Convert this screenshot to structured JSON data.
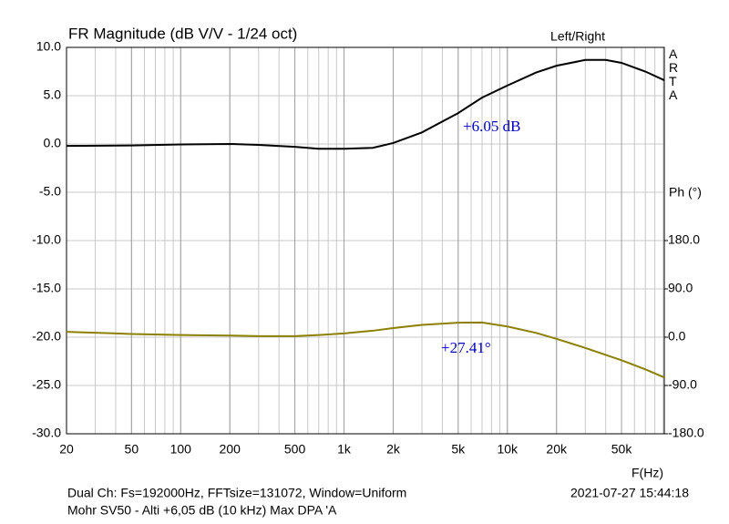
{
  "chart_data": {
    "type": "line",
    "title": "FR Magnitude (dB V/V - 1/24 oct)",
    "channel_label": "Left/Right",
    "brand": "ARTA",
    "y2_label": "Ph (°)",
    "x_label": "F(Hz)",
    "footer_left_1": "Dual Ch: Fs=192000Hz, FFTsize=131072, Window=Uniform",
    "footer_right_1": "2021-07-27  15:44:18",
    "footer_left_2": "Mohr SV50 - Alti +6,05 dB (10 kHz) Max    DPA  'A",
    "annotations": [
      {
        "text": "+6.05 dB",
        "series": 0
      },
      {
        "text": "+27.41°",
        "series": 1
      }
    ],
    "log_x": true,
    "grid": true,
    "x": [
      20,
      50,
      100,
      200,
      300,
      500,
      700,
      1000,
      1500,
      2000,
      3000,
      5000,
      7000,
      10000,
      15000,
      20000,
      30000,
      40000,
      50000,
      70000,
      91400
    ],
    "series": [
      {
        "name": "Magnitude",
        "color": "#000000",
        "values": [
          -0.2,
          -0.15,
          -0.05,
          0,
          -0.1,
          -0.3,
          -0.5,
          -0.5,
          -0.4,
          0.1,
          1.2,
          3.2,
          4.8,
          6.05,
          7.4,
          8.1,
          8.7,
          8.7,
          8.4,
          7.5,
          6.6
        ]
      },
      {
        "name": "Phase",
        "color": "#8c8000",
        "axis": "y2",
        "values": [
          10,
          6,
          4,
          3,
          2,
          2,
          4,
          7,
          12,
          17,
          23,
          27,
          27.41,
          20,
          8,
          -3,
          -20,
          -33,
          -43,
          -60,
          -75
        ]
      }
    ],
    "xlim": [
      20,
      91400
    ],
    "xticks": [
      20,
      50,
      100,
      200,
      500,
      {
        "value": 1000,
        "label": "1k"
      },
      {
        "value": 2000,
        "label": "2k"
      },
      {
        "value": 5000,
        "label": "5k"
      },
      {
        "value": 10000,
        "label": "10k"
      },
      {
        "value": 20000,
        "label": "20k"
      },
      {
        "value": 50000,
        "label": "50k"
      }
    ],
    "xgrid": [
      20,
      30,
      40,
      50,
      60,
      70,
      80,
      90,
      100,
      200,
      300,
      400,
      500,
      600,
      700,
      800,
      900,
      1000,
      2000,
      3000,
      4000,
      5000,
      6000,
      7000,
      8000,
      9000,
      10000,
      20000,
      30000,
      40000,
      50000,
      60000,
      70000,
      80000,
      90000
    ],
    "ylim": [
      -30,
      10
    ],
    "yticks": [
      {
        "value": 10,
        "label": "10.0"
      },
      {
        "value": 5,
        "label": "5.0"
      },
      {
        "value": 0,
        "label": "0.0"
      },
      {
        "value": -5,
        "label": "-5.0"
      },
      {
        "value": -10,
        "label": "-10.0"
      },
      {
        "value": -15,
        "label": "-15.0"
      },
      {
        "value": -20,
        "label": "-20.0"
      },
      {
        "value": -25,
        "label": "-25.0"
      },
      {
        "value": -30,
        "label": "-30.0"
      }
    ],
    "y2lim": [
      -180,
      540
    ],
    "y2ticks": [
      {
        "value": 180,
        "label": "180.0"
      },
      {
        "value": 90,
        "label": "90.0"
      },
      {
        "value": 0,
        "label": "0.0"
      },
      {
        "value": -90,
        "label": "-90.0"
      },
      {
        "value": -180,
        "label": "-180.0"
      }
    ]
  }
}
